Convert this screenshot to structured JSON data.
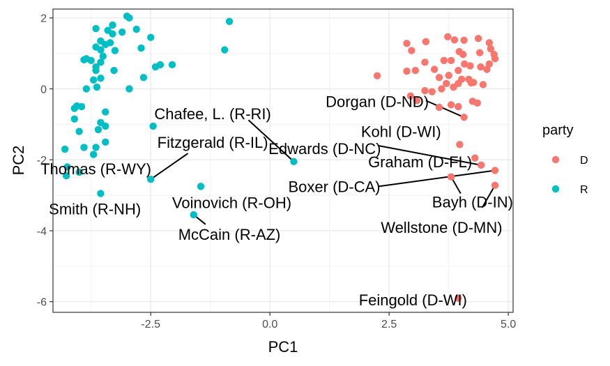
{
  "chart_data": {
    "type": "scatter",
    "xlabel": "PC1",
    "ylabel": "PC2",
    "xlim": [
      -4.55,
      5.1
    ],
    "ylim": [
      -6.3,
      2.25
    ],
    "x_ticks": [
      -2.5,
      0.0,
      2.5,
      5.0
    ],
    "x_tick_labels": [
      "-2.5",
      "0.0",
      "2.5",
      "5.0"
    ],
    "y_ticks": [
      -6,
      -4,
      -2,
      0,
      2
    ],
    "y_tick_labels": [
      "-6",
      "-4",
      "-2",
      "0",
      "2"
    ],
    "grid": true,
    "legend": {
      "title": "party",
      "position": "right",
      "entries": [
        {
          "label": "D",
          "color": "#F8766D"
        },
        {
          "label": "R",
          "color": "#00BFC4"
        }
      ]
    },
    "series": [
      {
        "name": "D",
        "color": "#F8766D",
        "points": [
          [
            2.25,
            0.37
          ],
          [
            2.87,
            1.28
          ],
          [
            2.97,
            1.08
          ],
          [
            3.27,
            1.33
          ],
          [
            3.73,
            1.47
          ],
          [
            3.87,
            1.38
          ],
          [
            4.07,
            1.37
          ],
          [
            4.37,
            1.42
          ],
          [
            4.6,
            1.3
          ],
          [
            4.63,
            1.13
          ],
          [
            4.7,
            0.97
          ],
          [
            4.72,
            0.85
          ],
          [
            4.4,
            1.02
          ],
          [
            4.05,
            0.97
          ],
          [
            3.97,
            1.05
          ],
          [
            3.8,
            0.8
          ],
          [
            3.65,
            0.8
          ],
          [
            3.45,
            0.55
          ],
          [
            3.25,
            0.75
          ],
          [
            3.05,
            0.52
          ],
          [
            2.87,
            0.5
          ],
          [
            4.6,
            0.7
          ],
          [
            4.55,
            0.55
          ],
          [
            4.42,
            0.62
          ],
          [
            4.2,
            0.65
          ],
          [
            4.08,
            0.7
          ],
          [
            3.95,
            0.52
          ],
          [
            3.75,
            0.38
          ],
          [
            3.55,
            0.32
          ],
          [
            4.02,
            0.27
          ],
          [
            4.17,
            0.27
          ],
          [
            4.27,
            0.18
          ],
          [
            4.47,
            0.12
          ],
          [
            3.7,
            0.15
          ],
          [
            3.85,
            0.05
          ],
          [
            3.6,
            0.0
          ],
          [
            3.95,
            0.15
          ],
          [
            4.22,
            0.17
          ],
          [
            3.4,
            -0.08
          ],
          [
            3.25,
            -0.05
          ],
          [
            2.95,
            -0.2
          ],
          [
            3.08,
            -0.33
          ],
          [
            3.55,
            -0.52
          ],
          [
            4.25,
            -0.35
          ],
          [
            3.95,
            -0.5
          ],
          [
            3.8,
            -0.45
          ],
          [
            4.35,
            -0.4
          ],
          [
            4.07,
            -0.8
          ],
          [
            3.98,
            -1.57
          ],
          [
            4.3,
            -1.95
          ],
          [
            4.43,
            -2.15
          ],
          [
            4.72,
            -2.3
          ],
          [
            3.8,
            -2.48
          ],
          [
            4.72,
            -2.72
          ],
          [
            3.95,
            -5.9
          ]
        ]
      },
      {
        "name": "R",
        "color": "#00BFC4",
        "points": [
          [
            -3.3,
            1.8
          ],
          [
            -3.65,
            1.7
          ],
          [
            -3.4,
            1.65
          ],
          [
            -3.3,
            1.55
          ],
          [
            -3.1,
            1.6
          ],
          [
            -3.0,
            2.05
          ],
          [
            -2.95,
            2.0
          ],
          [
            -2.8,
            1.68
          ],
          [
            -2.5,
            1.45
          ],
          [
            -2.7,
            1.15
          ],
          [
            -3.35,
            1.3
          ],
          [
            -3.55,
            1.35
          ],
          [
            -3.45,
            1.25
          ],
          [
            -3.65,
            1.18
          ],
          [
            -3.55,
            1.1
          ],
          [
            -3.25,
            1.08
          ],
          [
            -3.5,
            0.92
          ],
          [
            -3.55,
            0.75
          ],
          [
            -3.75,
            0.8
          ],
          [
            -3.85,
            0.85
          ],
          [
            -3.9,
            0.82
          ],
          [
            -3.65,
            0.62
          ],
          [
            -3.65,
            0.52
          ],
          [
            -3.27,
            0.52
          ],
          [
            -2.4,
            0.62
          ],
          [
            -2.3,
            0.68
          ],
          [
            -2.05,
            0.68
          ],
          [
            -2.65,
            0.32
          ],
          [
            -2.95,
            0.0
          ],
          [
            -3.55,
            0.3
          ],
          [
            -3.7,
            0.25
          ],
          [
            -3.63,
            0.05
          ],
          [
            -3.85,
            0.0
          ],
          [
            -3.95,
            -0.5
          ],
          [
            -4.05,
            -0.48
          ],
          [
            -4.1,
            -0.55
          ],
          [
            -3.45,
            -0.65
          ],
          [
            -3.55,
            -0.95
          ],
          [
            -3.45,
            -1.05
          ],
          [
            -4.1,
            -0.85
          ],
          [
            -3.6,
            -1.15
          ],
          [
            -4.0,
            -1.2
          ],
          [
            -3.45,
            -1.5
          ],
          [
            -3.65,
            -1.65
          ],
          [
            -3.9,
            -1.65
          ],
          [
            -4.3,
            -1.7
          ],
          [
            -3.7,
            -1.85
          ],
          [
            -4.25,
            -2.2
          ],
          [
            -4.0,
            -2.35
          ],
          [
            -4.27,
            -2.45
          ],
          [
            -3.55,
            -2.95
          ],
          [
            -0.85,
            1.9
          ],
          [
            -0.95,
            1.1
          ],
          [
            -2.45,
            -1.05
          ],
          [
            -2.5,
            -2.55
          ],
          [
            -1.45,
            -2.75
          ],
          [
            -1.6,
            -3.55
          ],
          [
            0.5,
            -2.05
          ]
        ]
      }
    ],
    "annotations": [
      {
        "text": "Chafee, L.  (R-RI)",
        "point": [
          0.5,
          -2.05
        ],
        "label_at": [
          -1.2,
          -0.7
        ],
        "leader": [
          [
            -0.45,
            -0.88
          ],
          [
            0.5,
            -2.05
          ]
        ]
      },
      {
        "text": "Fitzgerald (R-IL)",
        "point": [
          -2.5,
          -2.55
        ],
        "label_at": [
          -1.2,
          -1.5
        ],
        "leader": [
          [
            -1.72,
            -1.82
          ],
          [
            -2.5,
            -2.55
          ]
        ]
      },
      {
        "text": "Thomas (R-WY)",
        "point": [
          -4.27,
          -2.45
        ],
        "label_at": [
          -3.65,
          -2.25
        ],
        "leader": []
      },
      {
        "text": "Smith (R-NH)",
        "point": [
          -3.55,
          -2.95
        ],
        "label_at": [
          -3.67,
          -3.38
        ],
        "leader": []
      },
      {
        "text": "Voinovich (R-OH)",
        "point": [
          -1.45,
          -2.75
        ],
        "label_at": [
          -0.8,
          -3.2
        ],
        "leader": []
      },
      {
        "text": "McCain (R-AZ)",
        "point": [
          -1.6,
          -3.55
        ],
        "label_at": [
          -0.85,
          -4.1
        ],
        "leader": [
          [
            -1.35,
            -3.82
          ],
          [
            -1.6,
            -3.55
          ]
        ]
      },
      {
        "text": "Dorgan (D-ND)",
        "point": [
          4.07,
          -0.8
        ],
        "label_at": [
          2.25,
          -0.35
        ],
        "leader": [
          [
            3.27,
            -0.33
          ],
          [
            4.07,
            -0.8
          ]
        ]
      },
      {
        "text": "Kohl (D-WI)",
        "point": [
          3.98,
          -1.57
        ],
        "label_at": [
          2.75,
          -1.2
        ],
        "leader": []
      },
      {
        "text": "Edwards (D-NC)",
        "point": [
          4.43,
          -2.15
        ],
        "label_at": [
          1.15,
          -1.68
        ],
        "leader": [
          [
            2.27,
            -1.6
          ],
          [
            4.43,
            -2.15
          ]
        ]
      },
      {
        "text": "Graham (D-FL)",
        "point": [
          4.3,
          -1.95
        ],
        "label_at": [
          3.15,
          -2.05
        ],
        "leader": []
      },
      {
        "text": "Boxer (D-CA)",
        "point": [
          4.72,
          -2.3
        ],
        "label_at": [
          1.35,
          -2.75
        ],
        "leader": [
          [
            2.28,
            -2.75
          ],
          [
            4.72,
            -2.3
          ]
        ]
      },
      {
        "text": "Bayh (D-IN)",
        "point": [
          3.8,
          -2.48
        ],
        "label_at": [
          4.25,
          -3.18
        ],
        "leader": [
          [
            4.0,
            -2.95
          ],
          [
            3.8,
            -2.48
          ]
        ]
      },
      {
        "text": "Wellstone (D-MN)",
        "point": [
          4.72,
          -2.72
        ],
        "label_at": [
          3.6,
          -3.9
        ],
        "leader": [
          [
            4.45,
            -3.35
          ],
          [
            4.72,
            -2.72
          ]
        ]
      },
      {
        "text": "Feingold (D-WI)",
        "point": [
          3.95,
          -5.9
        ],
        "label_at": [
          3.0,
          -5.95
        ],
        "leader": []
      }
    ]
  }
}
